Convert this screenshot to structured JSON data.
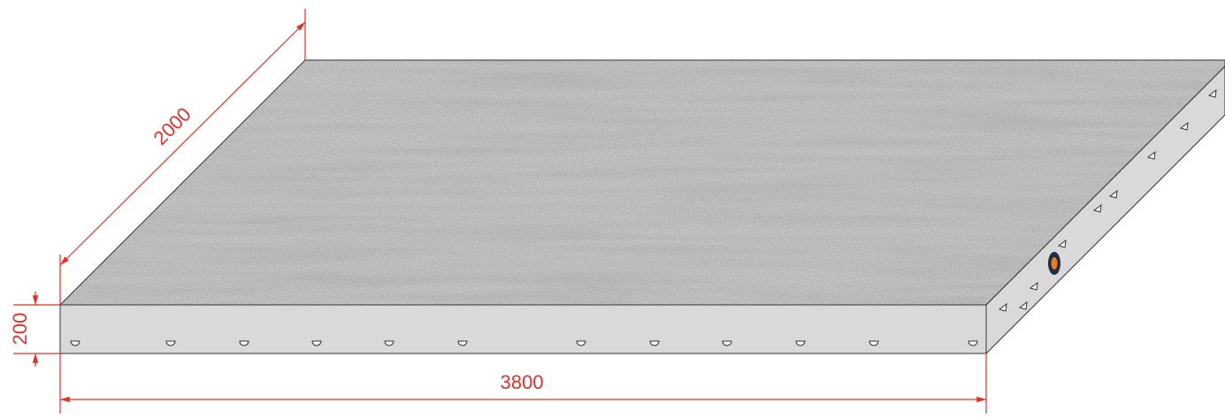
{
  "dimensions": {
    "width": "2000",
    "thickness": "200",
    "length": "3800"
  }
}
